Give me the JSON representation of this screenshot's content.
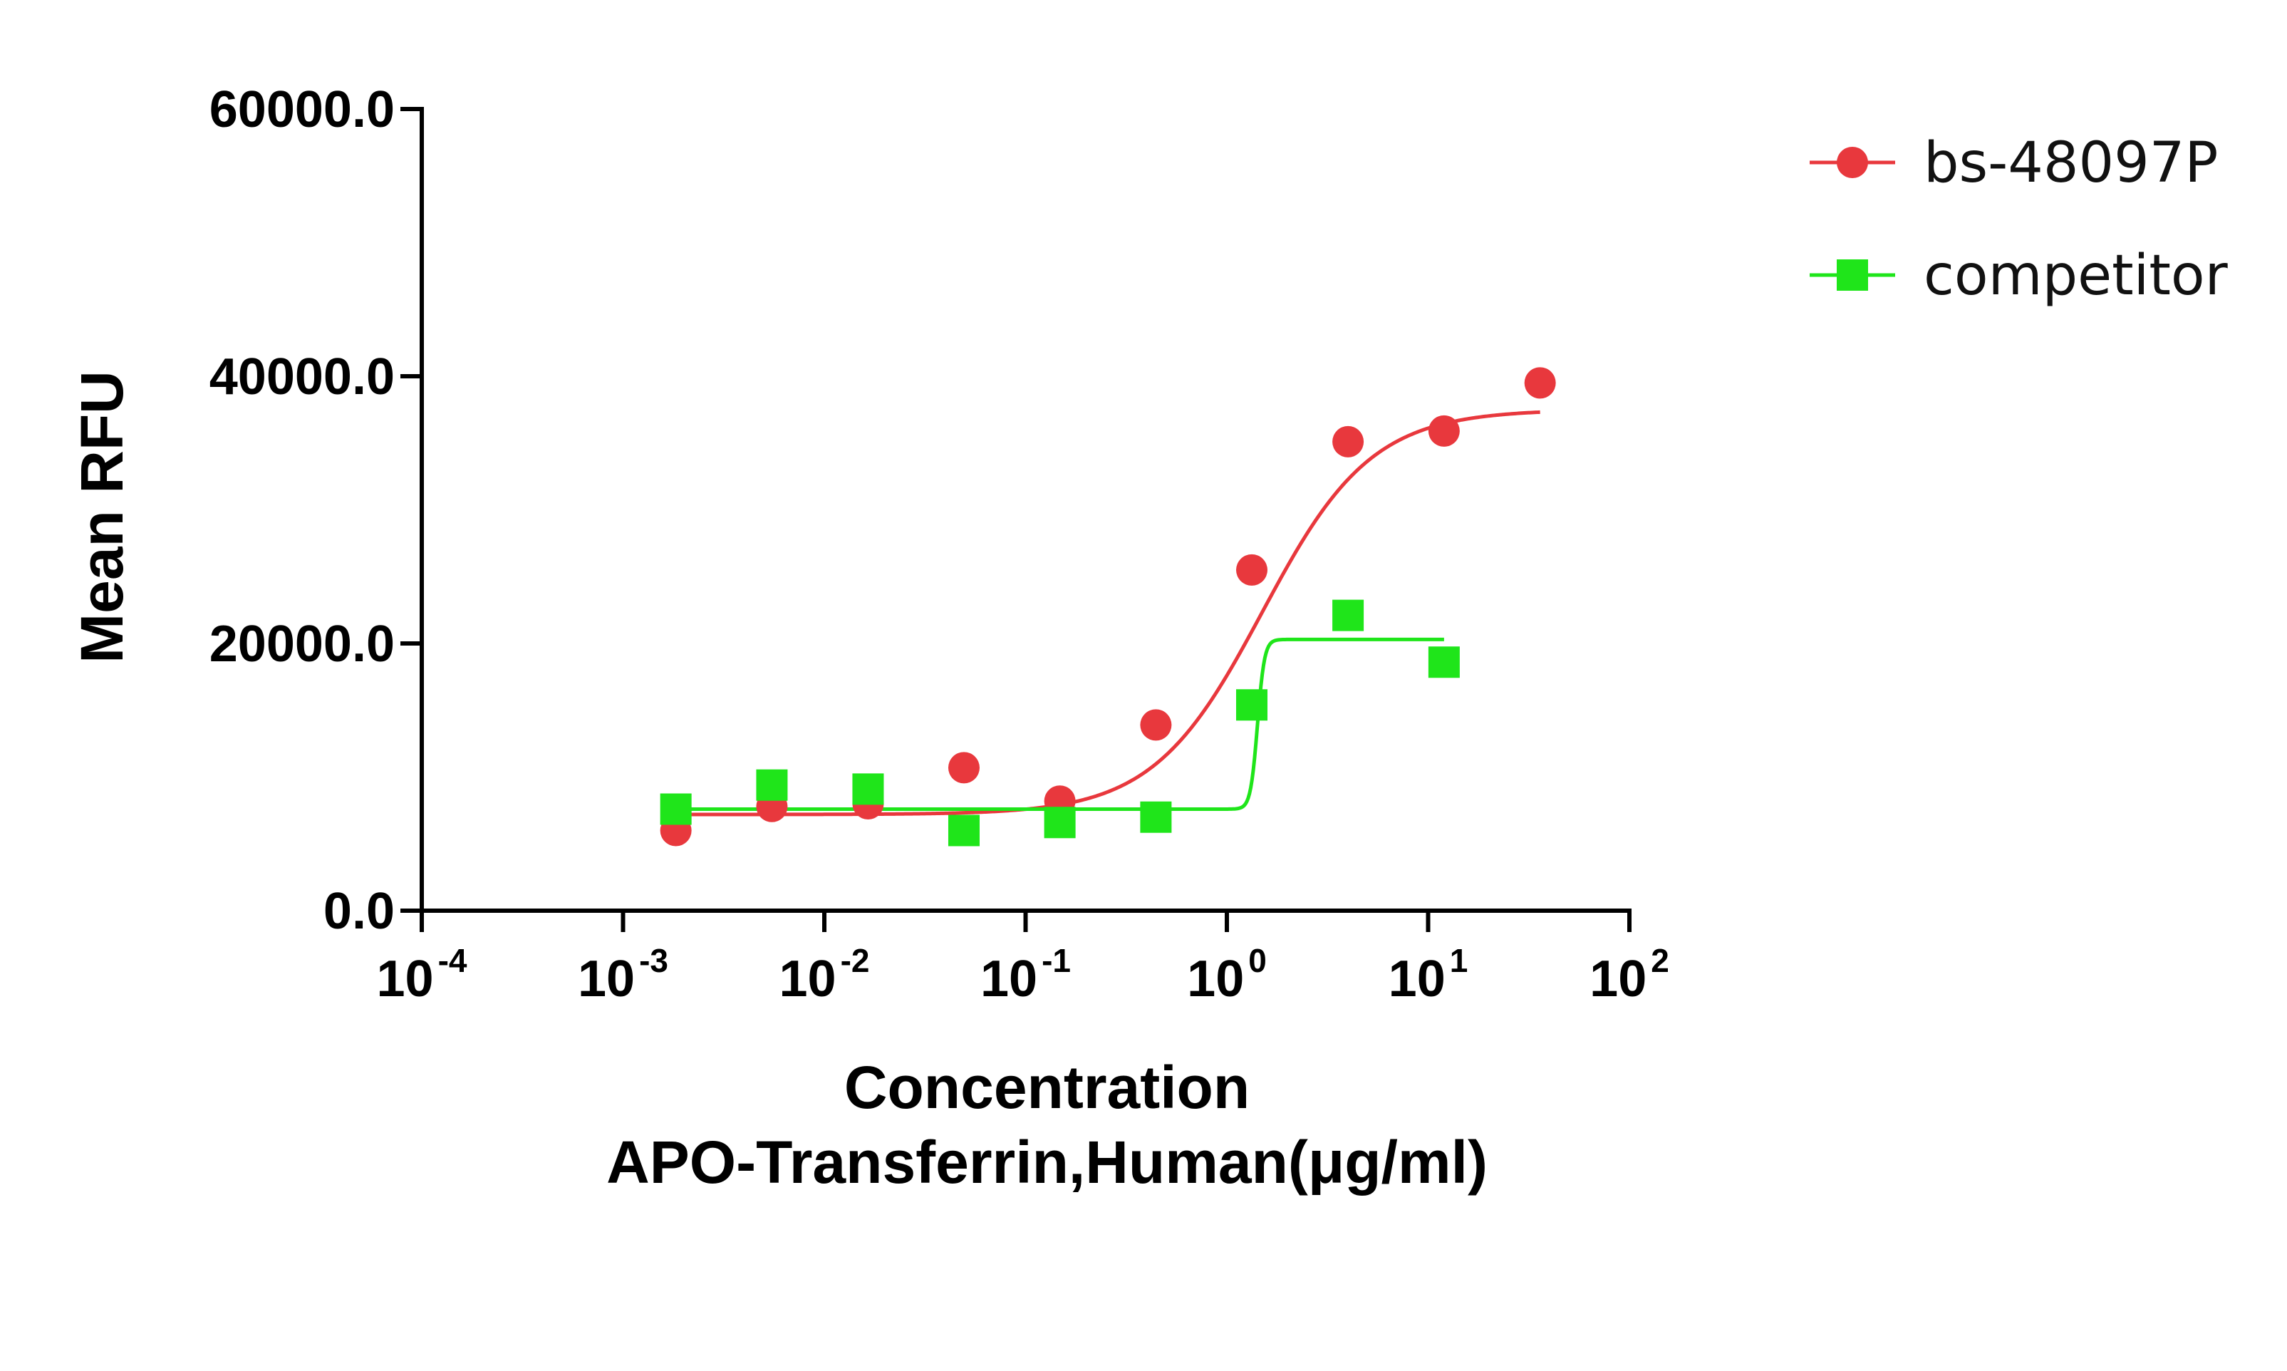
{
  "chart_data": {
    "type": "scatter",
    "x_scale": "log",
    "xlim": [
      0.0001,
      100
    ],
    "ylim": [
      0,
      60000
    ],
    "xlabel_lines": [
      "Concentration",
      "APO-Transferrin,Human(μg/ml)"
    ],
    "ylabel": "Mean RFU",
    "y_ticks": [
      {
        "value": 0,
        "label": "0.0"
      },
      {
        "value": 20000,
        "label": "20000.0"
      },
      {
        "value": 40000,
        "label": "40000.0"
      },
      {
        "value": 60000,
        "label": "60000.0"
      }
    ],
    "x_ticks": [
      {
        "value": 0.0001,
        "base": "10",
        "exp": "-4"
      },
      {
        "value": 0.001,
        "base": "10",
        "exp": "-3"
      },
      {
        "value": 0.01,
        "base": "10",
        "exp": "-2"
      },
      {
        "value": 0.1,
        "base": "10",
        "exp": "-1"
      },
      {
        "value": 1,
        "base": "10",
        "exp": "0"
      },
      {
        "value": 10,
        "base": "10",
        "exp": "1"
      },
      {
        "value": 100,
        "base": "10",
        "exp": "2"
      }
    ],
    "legend_position": "top-right",
    "grid": false,
    "series": [
      {
        "name": "bs-48097P",
        "color": "#e8383d",
        "marker": "circle",
        "x": [
          0.00183,
          0.00549,
          0.0165,
          0.0494,
          0.148,
          0.444,
          1.33,
          4.0,
          12.0,
          36.0
        ],
        "y": [
          6000,
          7800,
          8000,
          10700,
          8200,
          13900,
          25500,
          35100,
          35900,
          39500
        ],
        "fit": {
          "model": "4PL",
          "bottom": 7200,
          "top": 37500,
          "ec50": 1.5,
          "hill": 1.6,
          "x_range": [
            0.00183,
            36.0
          ]
        }
      },
      {
        "name": "competitor",
        "color": "#1fe51a",
        "marker": "square",
        "x": [
          0.00183,
          0.00549,
          0.0165,
          0.0494,
          0.148,
          0.444,
          1.33,
          4.0,
          12.0
        ],
        "y": [
          7600,
          9400,
          9100,
          6000,
          6600,
          7000,
          15400,
          22100,
          18600
        ],
        "fit": {
          "model": "4PL",
          "bottom": 7600,
          "top": 20300,
          "ec50": 1.42,
          "hill": 25,
          "x_range": [
            0.00183,
            12.0
          ]
        }
      }
    ]
  }
}
